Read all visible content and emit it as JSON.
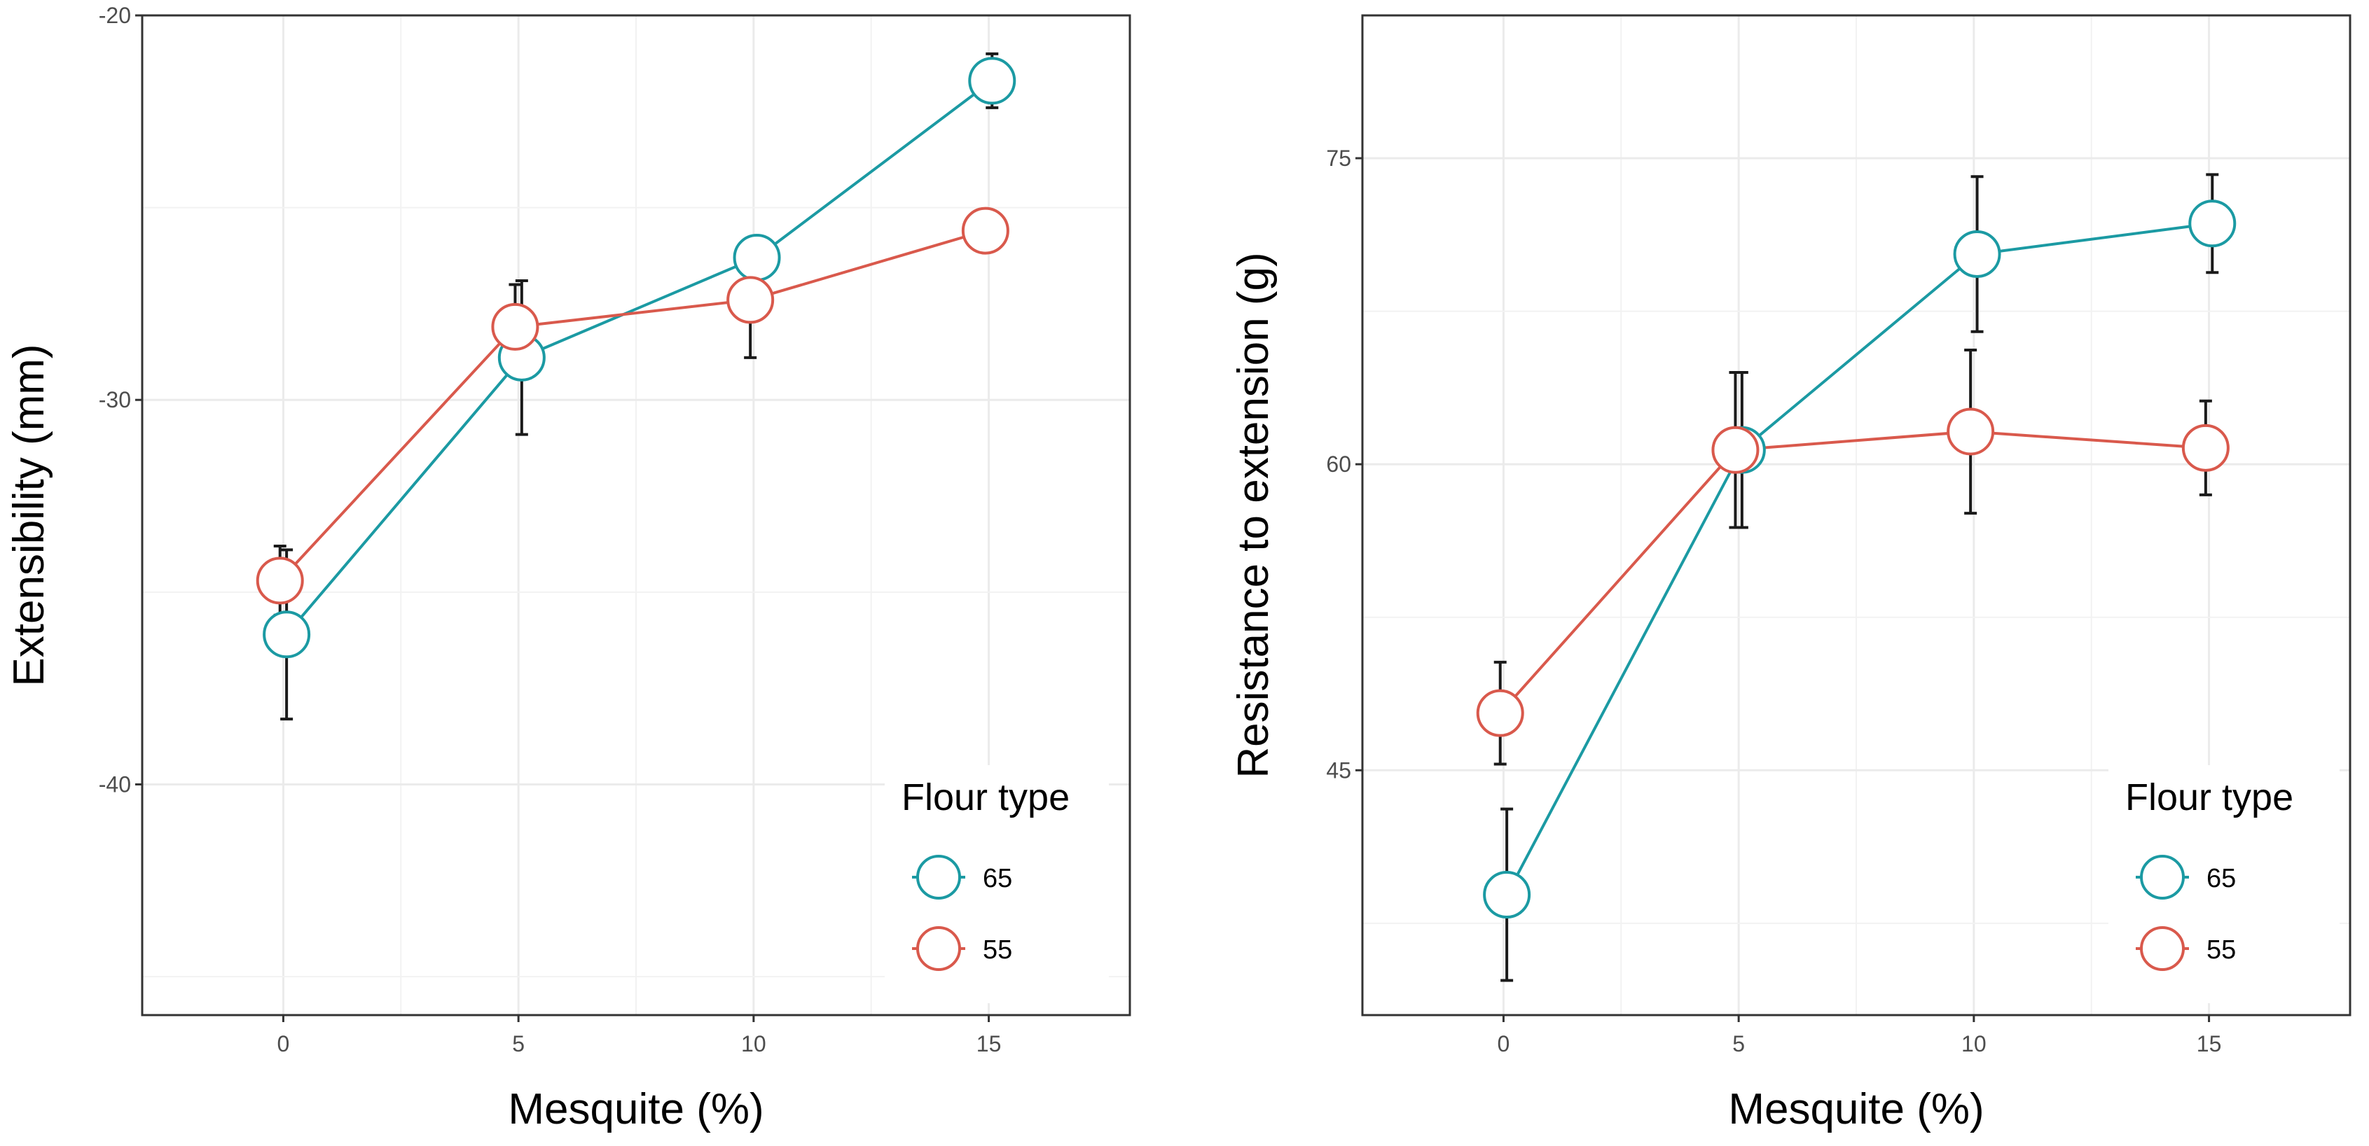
{
  "chart_data": [
    {
      "type": "line",
      "title": "",
      "xlabel": "Mesquite (%)",
      "ylabel": "Extensibility (mm)",
      "x": [
        0,
        5,
        10,
        15
      ],
      "xticks": [
        "0",
        "5",
        "10",
        "15"
      ],
      "yticks": [
        "-20",
        "-30",
        "-40"
      ],
      "xlim": [
        -3,
        18
      ],
      "ylim": [
        -46,
        -20
      ],
      "grid": true,
      "legend": {
        "title": "Flour type",
        "position": "bottom-right",
        "entries": [
          "65",
          "55"
        ]
      },
      "series": [
        {
          "name": "65",
          "color": "#1b9aa3",
          "values": [
            -36.1,
            -28.9,
            -26.3,
            -21.7
          ],
          "errors": [
            2.2,
            2.0,
            0.0,
            0.7
          ]
        },
        {
          "name": "55",
          "color": "#d9594c",
          "values": [
            -34.7,
            -28.1,
            -27.4,
            -25.6
          ],
          "errors": [
            0.9,
            1.1,
            1.5,
            0.0
          ]
        }
      ]
    },
    {
      "type": "line",
      "title": "",
      "xlabel": "Mesquite (%)",
      "ylabel": "Resistance to extension (g)",
      "x": [
        0,
        5,
        10,
        15
      ],
      "xticks": [
        "0",
        "5",
        "10",
        "15"
      ],
      "yticks": [
        "75",
        "60",
        "45"
      ],
      "xlim": [
        -3,
        18
      ],
      "ylim": [
        33,
        82
      ],
      "grid": true,
      "legend": {
        "title": "Flour type",
        "position": "bottom-right",
        "entries": [
          "65",
          "55"
        ]
      },
      "series": [
        {
          "name": "65",
          "color": "#1b9aa3",
          "values": [
            38.9,
            60.7,
            70.3,
            71.8
          ],
          "errors": [
            4.2,
            3.8,
            3.8,
            2.4
          ]
        },
        {
          "name": "55",
          "color": "#d9594c",
          "values": [
            47.8,
            60.7,
            61.6,
            60.8
          ],
          "errors": [
            2.5,
            3.8,
            4.0,
            2.3
          ]
        }
      ]
    }
  ]
}
